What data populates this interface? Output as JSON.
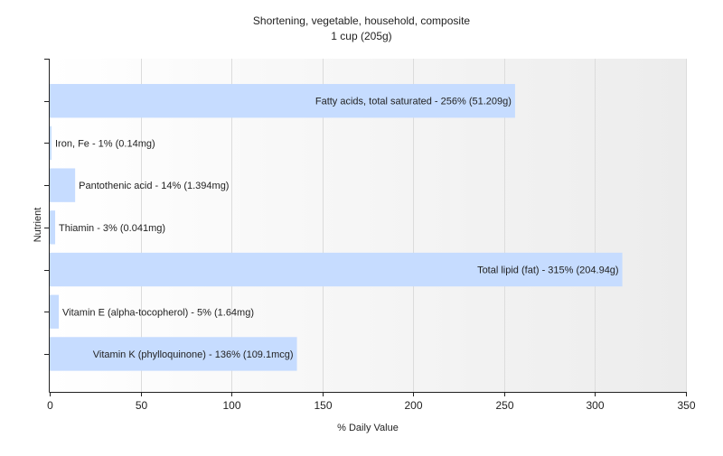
{
  "chart_data": {
    "type": "bar",
    "orientation": "horizontal",
    "title": "Shortening, vegetable, household, composite",
    "subtitle": "1 cup (205g)",
    "xlabel": "% Daily Value",
    "ylabel": "Nutrient",
    "xlim": [
      0,
      350
    ],
    "xticks": [
      0,
      50,
      100,
      150,
      200,
      250,
      300,
      350
    ],
    "grid": true,
    "bar_color": "#c6dcff",
    "bars": [
      {
        "label": "Fatty acids, total saturated - 256% (51.209g)",
        "value": 256
      },
      {
        "label": "Iron, Fe - 1% (0.14mg)",
        "value": 1
      },
      {
        "label": "Pantothenic acid - 14% (1.394mg)",
        "value": 14
      },
      {
        "label": "Thiamin - 3% (0.041mg)",
        "value": 3
      },
      {
        "label": "Total lipid (fat) - 315% (204.94g)",
        "value": 315
      },
      {
        "label": "Vitamin E (alpha-tocopherol) - 5% (1.64mg)",
        "value": 5
      },
      {
        "label": "Vitamin K (phylloquinone) - 136% (109.1mcg)",
        "value": 136
      }
    ]
  }
}
